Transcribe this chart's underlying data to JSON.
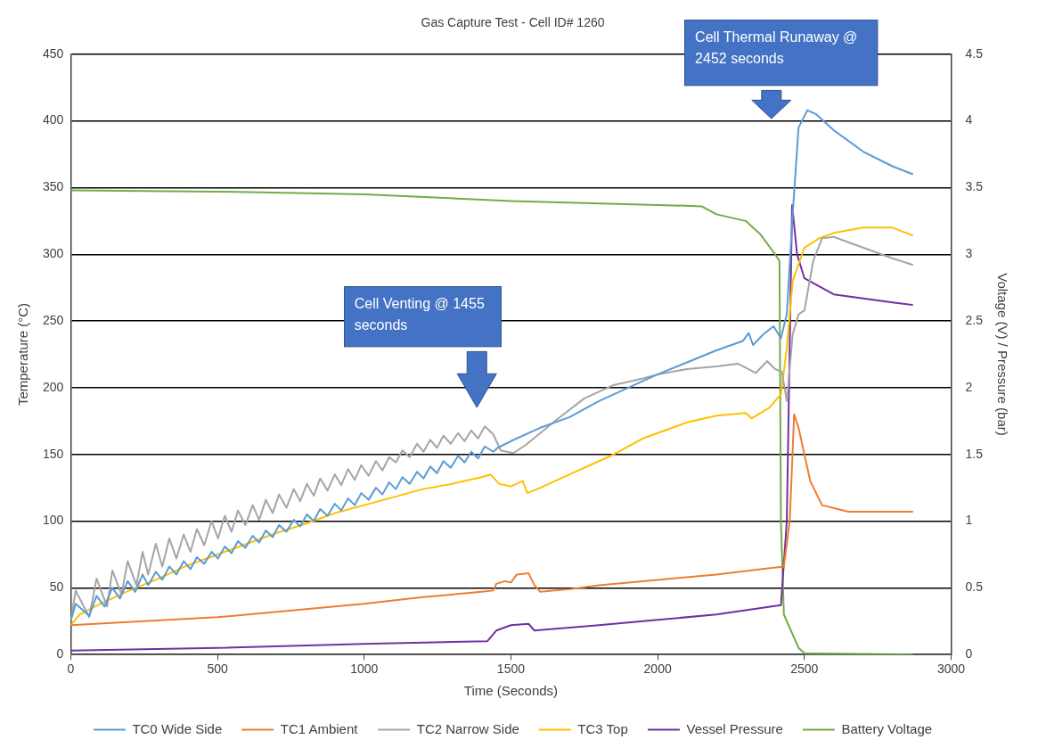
{
  "chart_data": {
    "type": "line",
    "title": "Gas Capture Test - Cell ID# 1260",
    "xlabel": "Time (Seconds)",
    "ylabel": "Temperature (°C)",
    "y2label": "Voltage (V) / Pressure (bar)",
    "xlim": [
      0,
      3000
    ],
    "xticks": [
      0,
      500,
      1000,
      1500,
      2000,
      2500,
      3000
    ],
    "ylim": [
      0,
      450
    ],
    "yticks": [
      0,
      50,
      100,
      150,
      200,
      250,
      300,
      350,
      400,
      450
    ],
    "y2lim": [
      0,
      4.5
    ],
    "y2ticks": [
      0,
      0.5,
      1,
      1.5,
      2,
      2.5,
      3,
      3.5,
      4,
      4.5
    ],
    "grid": "y",
    "legend": "bottom",
    "marker": "none",
    "line_style": "solid",
    "annotations": [
      "Cell Venting @ 1455 seconds",
      "Cell Thermal Runaway @ 2452 seconds"
    ],
    "series": [
      {
        "name": "TC0 Wide Side",
        "color": "#5b9bd5",
        "x": [
          0,
          17,
          63,
          88,
          115,
          142,
          168,
          194,
          220,
          245,
          264,
          290,
          312,
          336,
          360,
          385,
          408,
          430,
          455,
          480,
          502,
          525,
          548,
          570,
          595,
          620,
          642,
          665,
          688,
          710,
          735,
          760,
          782,
          805,
          828,
          850,
          875,
          900,
          922,
          945,
          968,
          990,
          1015,
          1040,
          1062,
          1085,
          1108,
          1130,
          1155,
          1180,
          1202,
          1225,
          1248,
          1270,
          1295,
          1320,
          1342,
          1365,
          1388,
          1411,
          1440,
          1455,
          1500,
          1600,
          1700,
          1800,
          1900,
          2000,
          2100,
          2200,
          2290,
          2310,
          2325,
          2360,
          2395,
          2420,
          2440,
          2460,
          2480,
          2510,
          2540,
          2600,
          2700,
          2800,
          2870
        ],
        "values": [
          25,
          38,
          29,
          44,
          36,
          50,
          42,
          55,
          47,
          60,
          52,
          62,
          56,
          66,
          60,
          70,
          64,
          73,
          68,
          77,
          72,
          81,
          76,
          85,
          80,
          89,
          84,
          93,
          88,
          97,
          92,
          101,
          96,
          105,
          100,
          109,
          104,
          113,
          108,
          117,
          112,
          121,
          116,
          125,
          120,
          129,
          124,
          133,
          128,
          137,
          132,
          141,
          136,
          145,
          140,
          149,
          144,
          152,
          147,
          156,
          152,
          155,
          160,
          170,
          178,
          190,
          200,
          210,
          219,
          228,
          235,
          241,
          232,
          240,
          246,
          237,
          255,
          330,
          395,
          408,
          405,
          393,
          377,
          366,
          360
        ]
      },
      {
        "name": "TC1 Ambient",
        "color": "#ed7d31",
        "x": [
          0,
          500,
          1000,
          1200,
          1400,
          1440,
          1450,
          1480,
          1500,
          1520,
          1560,
          1580,
          1600,
          1700,
          1800,
          2000,
          2200,
          2350,
          2430,
          2450,
          2465,
          2480,
          2520,
          2560,
          2650,
          2870
        ],
        "values": [
          22,
          28,
          38,
          43,
          47,
          48,
          53,
          55,
          54,
          60,
          61,
          52,
          47,
          49,
          52,
          56,
          60,
          64,
          66,
          100,
          180,
          170,
          130,
          112,
          107,
          107
        ]
      },
      {
        "name": "TC2 Narrow Side",
        "color": "#a5a5a5",
        "x": [
          0,
          17,
          63,
          88,
          124,
          142,
          173,
          194,
          224,
          245,
          264,
          290,
          312,
          336,
          360,
          385,
          408,
          430,
          455,
          480,
          502,
          525,
          548,
          570,
          595,
          620,
          642,
          665,
          688,
          710,
          735,
          760,
          782,
          805,
          828,
          850,
          875,
          900,
          922,
          945,
          968,
          990,
          1015,
          1040,
          1062,
          1085,
          1108,
          1130,
          1155,
          1180,
          1202,
          1225,
          1248,
          1270,
          1295,
          1320,
          1342,
          1365,
          1388,
          1411,
          1440,
          1465,
          1508,
          1550,
          1650,
          1750,
          1850,
          1950,
          2000,
          2100,
          2200,
          2273,
          2300,
          2334,
          2373,
          2400,
          2423,
          2440,
          2460,
          2480,
          2500,
          2530,
          2560,
          2600,
          2700,
          2800,
          2870
        ],
        "values": [
          25,
          48,
          28,
          57,
          36,
          63,
          45,
          70,
          52,
          77,
          60,
          83,
          66,
          87,
          72,
          90,
          77,
          94,
          82,
          100,
          87,
          104,
          92,
          108,
          97,
          112,
          101,
          116,
          106,
          120,
          110,
          124,
          115,
          128,
          119,
          132,
          123,
          135,
          127,
          139,
          131,
          142,
          134,
          145,
          138,
          148,
          144,
          153,
          148,
          158,
          152,
          161,
          155,
          164,
          158,
          166,
          160,
          168,
          162,
          171,
          165,
          153,
          151,
          157,
          175,
          192,
          202,
          207,
          210,
          214,
          216,
          218,
          215,
          211,
          220,
          214,
          212,
          190,
          240,
          255,
          258,
          295,
          312,
          313,
          305,
          297,
          292
        ]
      },
      {
        "name": "TC3 Top",
        "color": "#ffc000",
        "x": [
          0,
          30,
          100,
          200,
          300,
          400,
          500,
          600,
          700,
          800,
          900,
          1000,
          1100,
          1200,
          1300,
          1400,
          1430,
          1460,
          1500,
          1540,
          1556,
          1600,
          1700,
          1800,
          1850,
          1950,
          2000,
          2100,
          2200,
          2300,
          2320,
          2380,
          2420,
          2440,
          2460,
          2500,
          2550,
          2600,
          2700,
          2800,
          2870
        ],
        "values": [
          22,
          30,
          38,
          48,
          57,
          67,
          75,
          83,
          91,
          98,
          106,
          112,
          118,
          124,
          128,
          133,
          135,
          128,
          126,
          130,
          121,
          125,
          135,
          145,
          150,
          162,
          166,
          174,
          179,
          181,
          177,
          185,
          195,
          230,
          280,
          305,
          312,
          316,
          320,
          320,
          314
        ]
      },
      {
        "name": "Vessel Pressure",
        "color": "#7030a0",
        "axis": "y2",
        "x": [
          0,
          500,
          1000,
          1420,
          1450,
          1500,
          1560,
          1580,
          1800,
          2000,
          2200,
          2420,
          2440,
          2458,
          2475,
          2500,
          2600,
          2700,
          2800,
          2870
        ],
        "values": [
          0.03,
          0.05,
          0.08,
          0.1,
          0.18,
          0.22,
          0.23,
          0.18,
          0.22,
          0.26,
          0.3,
          0.37,
          1.0,
          3.37,
          3.0,
          2.82,
          2.7,
          2.67,
          2.64,
          2.62
        ]
      },
      {
        "name": "Battery Voltage",
        "color": "#70ad47",
        "axis": "y2",
        "x": [
          0,
          500,
          1000,
          1500,
          2000,
          2150,
          2200,
          2300,
          2350,
          2400,
          2415,
          2420,
          2430,
          2450,
          2480,
          2500,
          2870
        ],
        "values": [
          3.48,
          3.47,
          3.45,
          3.4,
          3.37,
          3.36,
          3.3,
          3.25,
          3.15,
          3.0,
          2.95,
          1.0,
          0.3,
          0.2,
          0.05,
          0.01,
          0.0
        ]
      }
    ]
  }
}
